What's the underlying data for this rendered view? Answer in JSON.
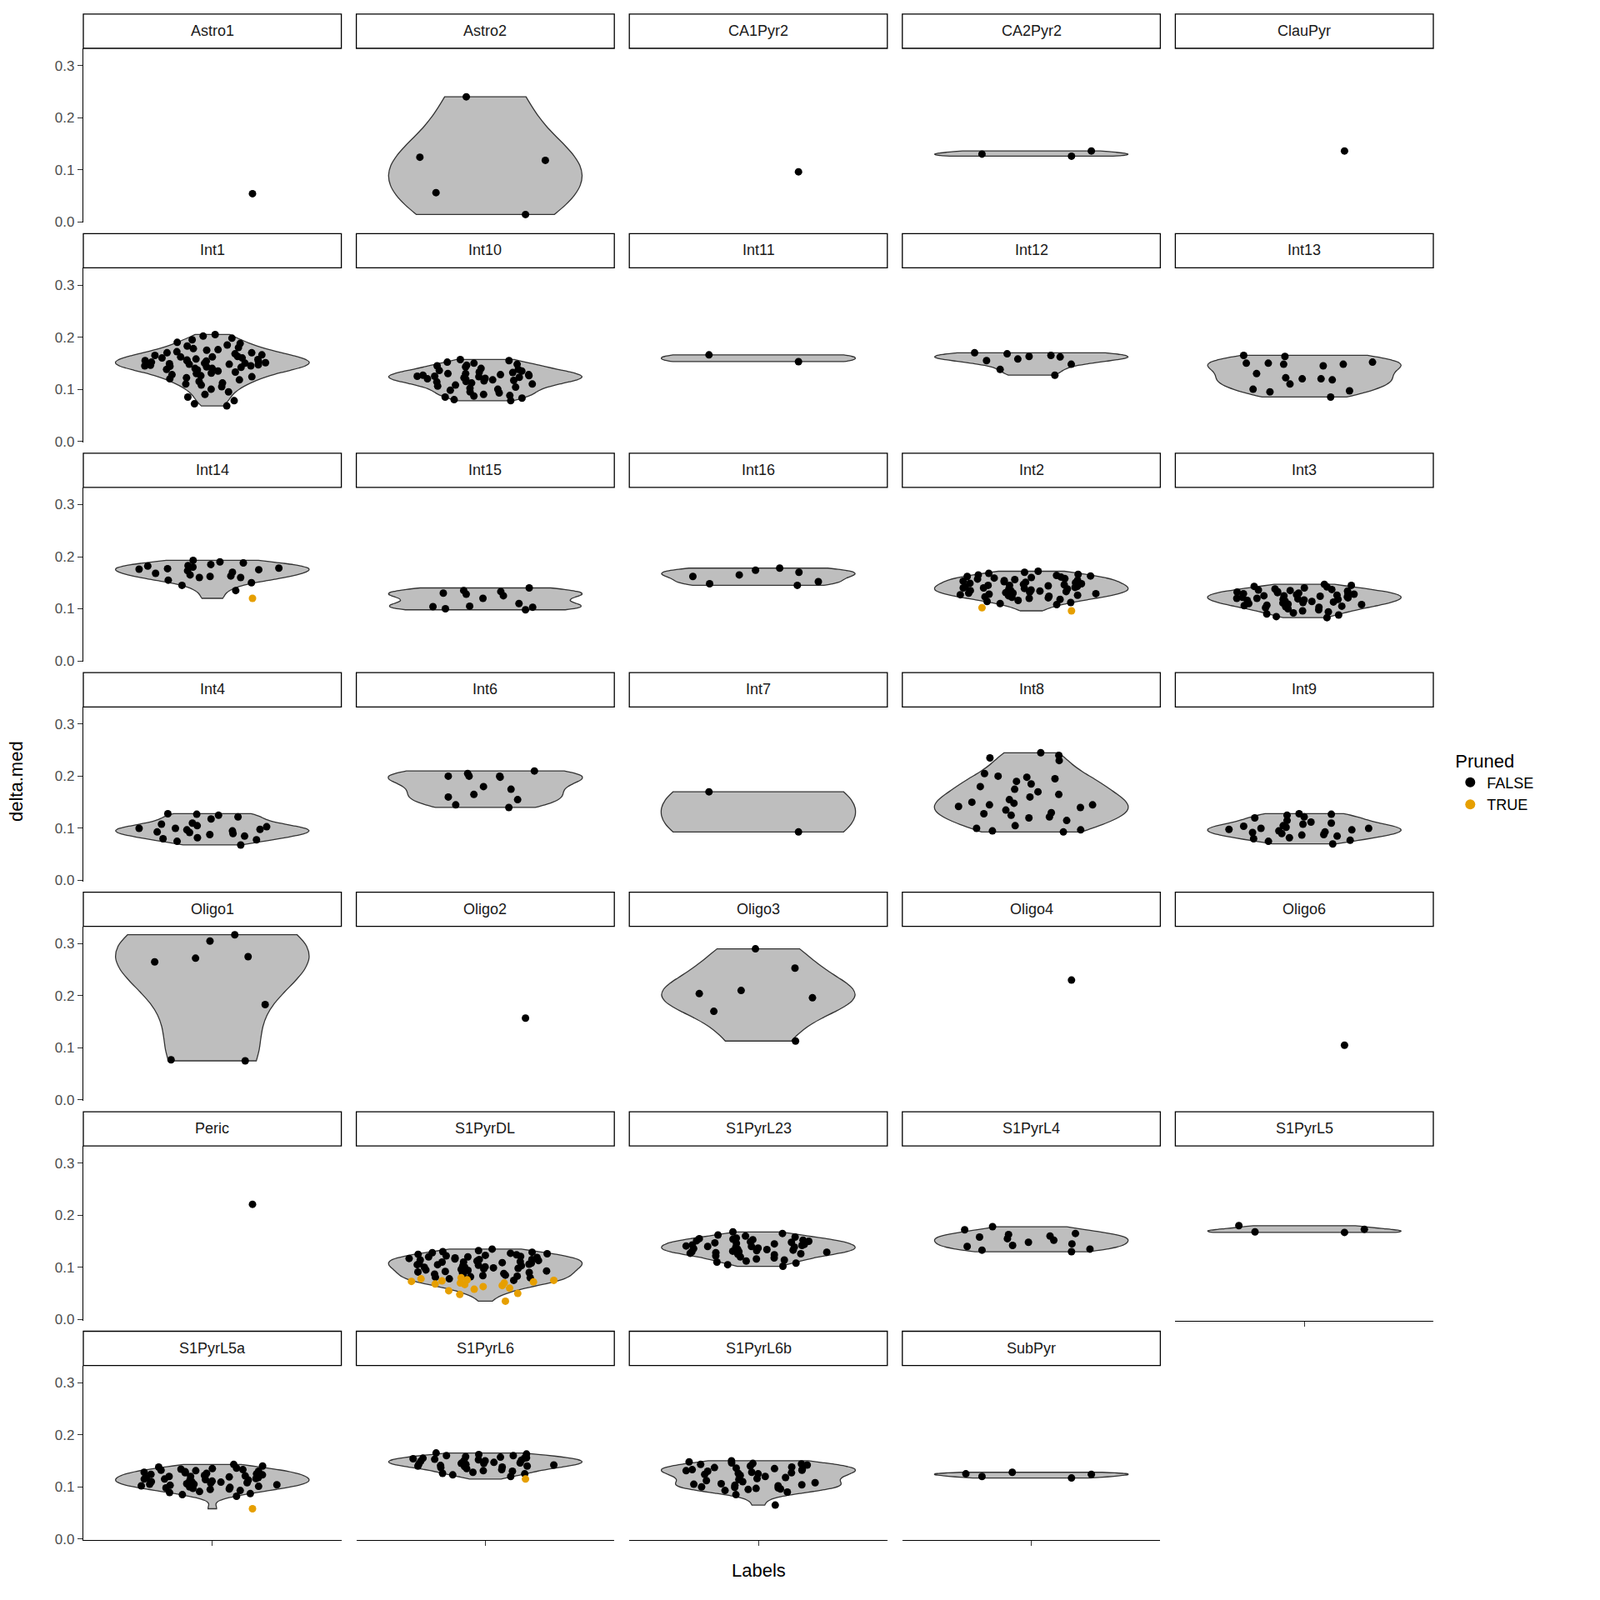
{
  "chart_data": {
    "type": "violin",
    "x_label": "Labels",
    "y_label": "delta.med",
    "legend_title": "Pruned",
    "legend": "right",
    "tick_labels": "y",
    "categories": [
      null
    ],
    "ylim": [
      -0.002,
      0.333
    ],
    "yticks": [
      {
        "value": 0,
        "label": "0.0"
      },
      0.1,
      0.2,
      0.3
    ],
    "series": [
      {
        "name": "FALSE",
        "color": "#000000",
        "marker": "circle"
      },
      {
        "name": "TRUE",
        "color": "#E69F00",
        "marker": "circle"
      }
    ],
    "facets": [
      {
        "label": "Astro1",
        "points": {
          "FALSE": [
            0.054
          ]
        }
      },
      {
        "label": "Astro2",
        "points": {
          "FALSE": [
            0.24,
            0.118,
            0.124,
            0.056,
            0.014
          ]
        }
      },
      {
        "label": "CA1Pyr2",
        "points": {
          "FALSE": [
            0.096
          ]
        }
      },
      {
        "label": "CA2Pyr2",
        "points": {
          "FALSE": [
            0.126,
            0.13,
            0.136
          ]
        }
      },
      {
        "label": "ClauPyr",
        "points": {
          "FALSE": [
            0.136
          ]
        }
      },
      {
        "label": "Int1",
        "points": {
          "FALSE": [
            0.205,
            0.198,
            0.202,
            0.195,
            0.19,
            0.188,
            0.185,
            0.183,
            0.18,
            0.178,
            0.176,
            0.175,
            0.172,
            0.17,
            0.168,
            0.166,
            0.165,
            0.163,
            0.162,
            0.16,
            0.158,
            0.157,
            0.156,
            0.155,
            0.154,
            0.153,
            0.152,
            0.151,
            0.15,
            0.149,
            0.148,
            0.147,
            0.146,
            0.145,
            0.144,
            0.143,
            0.142,
            0.14,
            0.138,
            0.137,
            0.135,
            0.133,
            0.131,
            0.13,
            0.128,
            0.126,
            0.124,
            0.122,
            0.12,
            0.118,
            0.115,
            0.112,
            0.11,
            0.108,
            0.105,
            0.1,
            0.095,
            0.09,
            0.085,
            0.078,
            0.072,
            0.068,
            0.155,
            0.16,
            0.15,
            0.145,
            0.14,
            0.17,
            0.162,
            0.148
          ]
        }
      },
      {
        "label": "Int10",
        "points": {
          "FALSE": [
            0.157,
            0.155,
            0.152,
            0.15,
            0.148,
            0.146,
            0.145,
            0.143,
            0.14,
            0.138,
            0.136,
            0.135,
            0.133,
            0.132,
            0.13,
            0.128,
            0.127,
            0.126,
            0.125,
            0.124,
            0.123,
            0.122,
            0.121,
            0.12,
            0.119,
            0.118,
            0.117,
            0.116,
            0.115,
            0.114,
            0.112,
            0.11,
            0.108,
            0.106,
            0.104,
            0.102,
            0.1,
            0.098,
            0.095,
            0.093,
            0.09,
            0.088,
            0.087,
            0.085,
            0.083,
            0.08,
            0.078,
            0.128,
            0.13,
            0.125
          ]
        }
      },
      {
        "label": "Int11",
        "points": {
          "FALSE": [
            0.166,
            0.153
          ]
        }
      },
      {
        "label": "Int12",
        "points": {
          "FALSE": [
            0.17,
            0.168,
            0.165,
            0.163,
            0.155,
            0.158,
            0.148,
            0.138,
            0.127,
            0.162
          ]
        }
      },
      {
        "label": "Int13",
        "points": {
          "FALSE": [
            0.15,
            0.12,
            0.118,
            0.097,
            0.1,
            0.122,
            0.163,
            0.145,
            0.12,
            0.13,
            0.152,
            0.15,
            0.148,
            0.148,
            0.095,
            0.085,
            0.11,
            0.165
          ]
        }
      },
      {
        "label": "Int14",
        "points": {
          "FALSE": [
            0.193,
            0.19,
            0.188,
            0.185,
            0.183,
            0.182,
            0.18,
            0.178,
            0.177,
            0.176,
            0.175,
            0.173,
            0.17,
            0.168,
            0.165,
            0.163,
            0.162,
            0.16,
            0.16,
            0.155,
            0.15,
            0.145,
            0.135
          ],
          "TRUE": [
            0.12
          ]
        }
      },
      {
        "label": "Int15",
        "points": {
          "FALSE": [
            0.14,
            0.135,
            0.133,
            0.13,
            0.128,
            0.125,
            0.12,
            0.11,
            0.105,
            0.104,
            0.103,
            0.1,
            0.098
          ]
        }
      },
      {
        "label": "Int16",
        "points": {
          "FALSE": [
            0.178,
            0.174,
            0.17,
            0.165,
            0.162,
            0.152,
            0.148,
            0.145
          ]
        }
      },
      {
        "label": "Int2",
        "points": {
          "FALSE": [
            0.172,
            0.17,
            0.168,
            0.166,
            0.165,
            0.164,
            0.163,
            0.162,
            0.161,
            0.16,
            0.159,
            0.158,
            0.157,
            0.156,
            0.155,
            0.154,
            0.153,
            0.152,
            0.151,
            0.15,
            0.149,
            0.148,
            0.147,
            0.146,
            0.145,
            0.145,
            0.144,
            0.143,
            0.142,
            0.141,
            0.14,
            0.14,
            0.139,
            0.138,
            0.137,
            0.136,
            0.135,
            0.135,
            0.134,
            0.133,
            0.132,
            0.131,
            0.13,
            0.13,
            0.129,
            0.128,
            0.127,
            0.126,
            0.125,
            0.124,
            0.123,
            0.122,
            0.121,
            0.12,
            0.118,
            0.116,
            0.114,
            0.112,
            0.11,
            0.108
          ],
          "TRUE": [
            0.102,
            0.096
          ]
        }
      },
      {
        "label": "Int3",
        "points": {
          "FALSE": [
            0.147,
            0.145,
            0.143,
            0.142,
            0.14,
            0.138,
            0.137,
            0.136,
            0.135,
            0.134,
            0.133,
            0.132,
            0.131,
            0.13,
            0.129,
            0.128,
            0.127,
            0.126,
            0.125,
            0.124,
            0.123,
            0.122,
            0.121,
            0.12,
            0.12,
            0.119,
            0.118,
            0.117,
            0.116,
            0.115,
            0.114,
            0.113,
            0.112,
            0.111,
            0.11,
            0.109,
            0.108,
            0.107,
            0.106,
            0.105,
            0.104,
            0.103,
            0.102,
            0.1,
            0.098,
            0.096,
            0.094,
            0.092,
            0.09,
            0.088,
            0.085,
            0.083,
            0.125,
            0.13,
            0.118
          ]
        }
      },
      {
        "label": "Int4",
        "points": {
          "FALSE": [
            0.128,
            0.127,
            0.125,
            0.122,
            0.118,
            0.11,
            0.108,
            0.105,
            0.103,
            0.1,
            0.1,
            0.098,
            0.097,
            0.095,
            0.093,
            0.092,
            0.09,
            0.088,
            0.085,
            0.082,
            0.08,
            0.078,
            0.075,
            0.068
          ]
        }
      },
      {
        "label": "Int6",
        "points": {
          "FALSE": [
            0.21,
            0.205,
            0.2,
            0.2,
            0.2,
            0.198,
            0.18,
            0.175,
            0.165,
            0.16,
            0.155,
            0.145,
            0.14
          ]
        }
      },
      {
        "label": "Int7",
        "points": {
          "FALSE": [
            0.17,
            0.093
          ]
        }
      },
      {
        "label": "Int8",
        "points": {
          "FALSE": [
            0.245,
            0.24,
            0.235,
            0.23,
            0.205,
            0.2,
            0.198,
            0.195,
            0.19,
            0.185,
            0.18,
            0.175,
            0.17,
            0.165,
            0.16,
            0.155,
            0.15,
            0.148,
            0.145,
            0.145,
            0.142,
            0.14,
            0.135,
            0.13,
            0.128,
            0.125,
            0.122,
            0.12,
            0.115,
            0.105,
            0.1,
            0.097,
            0.095,
            0.093
          ]
        }
      },
      {
        "label": "Int9",
        "points": {
          "FALSE": [
            0.128,
            0.127,
            0.125,
            0.122,
            0.12,
            0.115,
            0.112,
            0.11,
            0.108,
            0.105,
            0.104,
            0.102,
            0.1,
            0.1,
            0.098,
            0.097,
            0.095,
            0.093,
            0.092,
            0.09,
            0.088,
            0.087,
            0.085,
            0.082,
            0.08,
            0.077,
            0.075,
            0.07
          ]
        }
      },
      {
        "label": "Oligo1",
        "points": {
          "FALSE": [
            0.317,
            0.305,
            0.275,
            0.272,
            0.265,
            0.183,
            0.077,
            0.075
          ]
        }
      },
      {
        "label": "Oligo2",
        "points": {
          "FALSE": [
            0.157
          ]
        }
      },
      {
        "label": "Oligo3",
        "points": {
          "FALSE": [
            0.29,
            0.253,
            0.21,
            0.204,
            0.196,
            0.17,
            0.113
          ]
        }
      },
      {
        "label": "Oligo4",
        "points": {
          "FALSE": [
            0.23
          ]
        }
      },
      {
        "label": "Oligo6",
        "points": {
          "FALSE": [
            0.105
          ]
        }
      },
      {
        "label": "Peric",
        "points": {
          "FALSE": [
            0.221
          ]
        }
      },
      {
        "label": "S1PyrDL",
        "points": {
          "FALSE": [
            0.135,
            0.132,
            0.13,
            0.129,
            0.128,
            0.127,
            0.126,
            0.125,
            0.124,
            0.123,
            0.122,
            0.121,
            0.12,
            0.12,
            0.119,
            0.118,
            0.117,
            0.116,
            0.115,
            0.115,
            0.114,
            0.113,
            0.112,
            0.111,
            0.11,
            0.11,
            0.109,
            0.108,
            0.107,
            0.106,
            0.105,
            0.105,
            0.104,
            0.103,
            0.102,
            0.101,
            0.1,
            0.1,
            0.099,
            0.098,
            0.097,
            0.096,
            0.095,
            0.094,
            0.093,
            0.092,
            0.091,
            0.09,
            0.089,
            0.088,
            0.087,
            0.086,
            0.085,
            0.084,
            0.083,
            0.082,
            0.081,
            0.08,
            0.078,
            0.075
          ],
          "TRUE": [
            0.08,
            0.078,
            0.076,
            0.075,
            0.074,
            0.073,
            0.072,
            0.07,
            0.07,
            0.068,
            0.067,
            0.065,
            0.063,
            0.06,
            0.058,
            0.055,
            0.05,
            0.048,
            0.035
          ]
        }
      },
      {
        "label": "S1PyrL23",
        "points": {
          "FALSE": [
            0.168,
            0.165,
            0.162,
            0.16,
            0.158,
            0.156,
            0.155,
            0.154,
            0.153,
            0.152,
            0.151,
            0.15,
            0.149,
            0.148,
            0.147,
            0.146,
            0.145,
            0.144,
            0.143,
            0.142,
            0.141,
            0.14,
            0.14,
            0.139,
            0.138,
            0.137,
            0.136,
            0.135,
            0.134,
            0.133,
            0.132,
            0.131,
            0.13,
            0.13,
            0.129,
            0.128,
            0.127,
            0.126,
            0.125,
            0.124,
            0.122,
            0.12,
            0.118,
            0.116,
            0.114,
            0.112,
            0.11,
            0.108,
            0.105,
            0.102
          ]
        }
      },
      {
        "label": "S1PyrL4",
        "points": {
          "FALSE": [
            0.178,
            0.172,
            0.165,
            0.163,
            0.16,
            0.158,
            0.155,
            0.152,
            0.148,
            0.145,
            0.142,
            0.14,
            0.135,
            0.133,
            0.13
          ]
        }
      },
      {
        "label": "S1PyrL5",
        "points": {
          "FALSE": [
            0.167,
            0.168,
            0.173,
            0.18
          ]
        }
      },
      {
        "label": "S1PyrL5a",
        "points": {
          "FALSE": [
            0.143,
            0.14,
            0.138,
            0.136,
            0.135,
            0.134,
            0.133,
            0.132,
            0.131,
            0.13,
            0.129,
            0.128,
            0.127,
            0.126,
            0.125,
            0.124,
            0.123,
            0.122,
            0.121,
            0.12,
            0.12,
            0.119,
            0.118,
            0.117,
            0.116,
            0.115,
            0.115,
            0.114,
            0.113,
            0.112,
            0.111,
            0.11,
            0.11,
            0.109,
            0.108,
            0.107,
            0.106,
            0.105,
            0.105,
            0.104,
            0.103,
            0.102,
            0.101,
            0.1,
            0.099,
            0.098,
            0.097,
            0.096,
            0.095,
            0.093,
            0.091,
            0.089,
            0.087,
            0.085,
            0.082
          ],
          "TRUE": [
            0.058
          ]
        }
      },
      {
        "label": "S1PyrL6",
        "points": {
          "FALSE": [
            0.165,
            0.163,
            0.162,
            0.16,
            0.16,
            0.158,
            0.157,
            0.156,
            0.155,
            0.155,
            0.154,
            0.153,
            0.152,
            0.151,
            0.15,
            0.15,
            0.149,
            0.148,
            0.147,
            0.146,
            0.145,
            0.145,
            0.144,
            0.143,
            0.142,
            0.141,
            0.14,
            0.14,
            0.139,
            0.138,
            0.137,
            0.135,
            0.133,
            0.131,
            0.13,
            0.128,
            0.126,
            0.125,
            0.123,
            0.12
          ],
          "TRUE": [
            0.115
          ]
        }
      },
      {
        "label": "S1PyrL6b",
        "points": {
          "FALSE": [
            0.15,
            0.148,
            0.146,
            0.145,
            0.144,
            0.143,
            0.142,
            0.14,
            0.138,
            0.137,
            0.136,
            0.135,
            0.134,
            0.133,
            0.132,
            0.131,
            0.13,
            0.128,
            0.127,
            0.126,
            0.125,
            0.124,
            0.122,
            0.12,
            0.118,
            0.116,
            0.114,
            0.112,
            0.11,
            0.108,
            0.106,
            0.105,
            0.104,
            0.103,
            0.102,
            0.1,
            0.099,
            0.098,
            0.097,
            0.096,
            0.095,
            0.093,
            0.09,
            0.085,
            0.065
          ]
        }
      },
      {
        "label": "SubPyr",
        "points": {
          "FALSE": [
            0.117,
            0.12,
            0.128,
            0.125,
            0.124
          ]
        }
      }
    ]
  }
}
